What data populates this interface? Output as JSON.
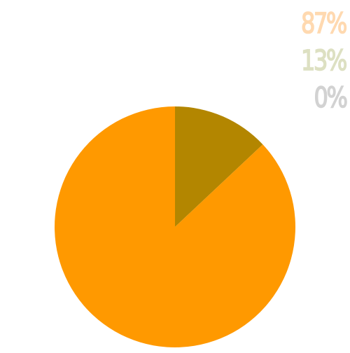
{
  "chart_data": {
    "type": "pie",
    "slices": [
      {
        "label": "87%",
        "value": 87,
        "color": "#ff9900",
        "label_color": "#ffd9b0"
      },
      {
        "label": "13%",
        "value": 13,
        "color": "#b38600",
        "label_color": "#dde0c2"
      },
      {
        "label": "0%",
        "value": 0,
        "color": "#cccccc",
        "label_color": "#d2d2d2"
      }
    ],
    "start_angle_deg": 0,
    "direction": "counterclockwise",
    "legend_position": "top-right",
    "legend": [
      "87%",
      "13%",
      "0%"
    ]
  }
}
